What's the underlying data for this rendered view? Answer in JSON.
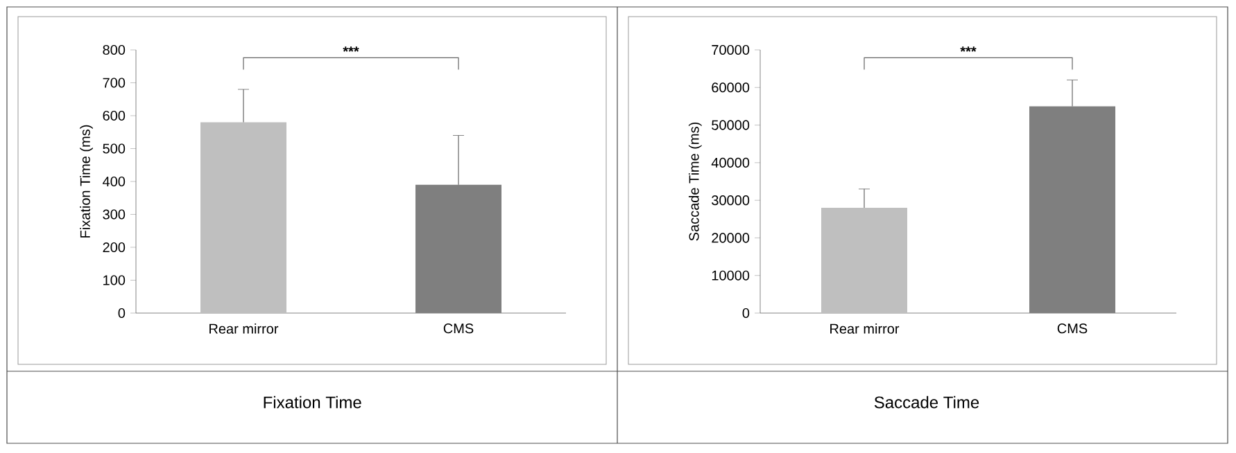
{
  "chart_data": [
    {
      "type": "bar",
      "title": "Fixation Time",
      "ylabel": "Fixation Time (ms)",
      "categories": [
        "Rear mirror",
        "CMS"
      ],
      "values": [
        580,
        390
      ],
      "colors": [
        "#bfbfbf",
        "#7f7f7f"
      ],
      "errors": [
        [
          580,
          680
        ],
        [
          390,
          540
        ]
      ],
      "ylim": [
        0,
        800
      ],
      "yticks": [
        0,
        100,
        200,
        300,
        400,
        500,
        600,
        700,
        800
      ],
      "annotations": [
        "***"
      ]
    },
    {
      "type": "bar",
      "title": "Saccade Time",
      "ylabel": "Saccade Time (ms)",
      "categories": [
        "Rear mirror",
        "CMS"
      ],
      "values": [
        28000,
        55000
      ],
      "colors": [
        "#bfbfbf",
        "#7f7f7f"
      ],
      "errors": [
        [
          28000,
          33000
        ],
        [
          55000,
          62000
        ]
      ],
      "ylim": [
        0,
        70000
      ],
      "yticks": [
        0,
        10000,
        20000,
        30000,
        40000,
        50000,
        60000,
        70000
      ],
      "annotations": [
        "***"
      ]
    }
  ]
}
